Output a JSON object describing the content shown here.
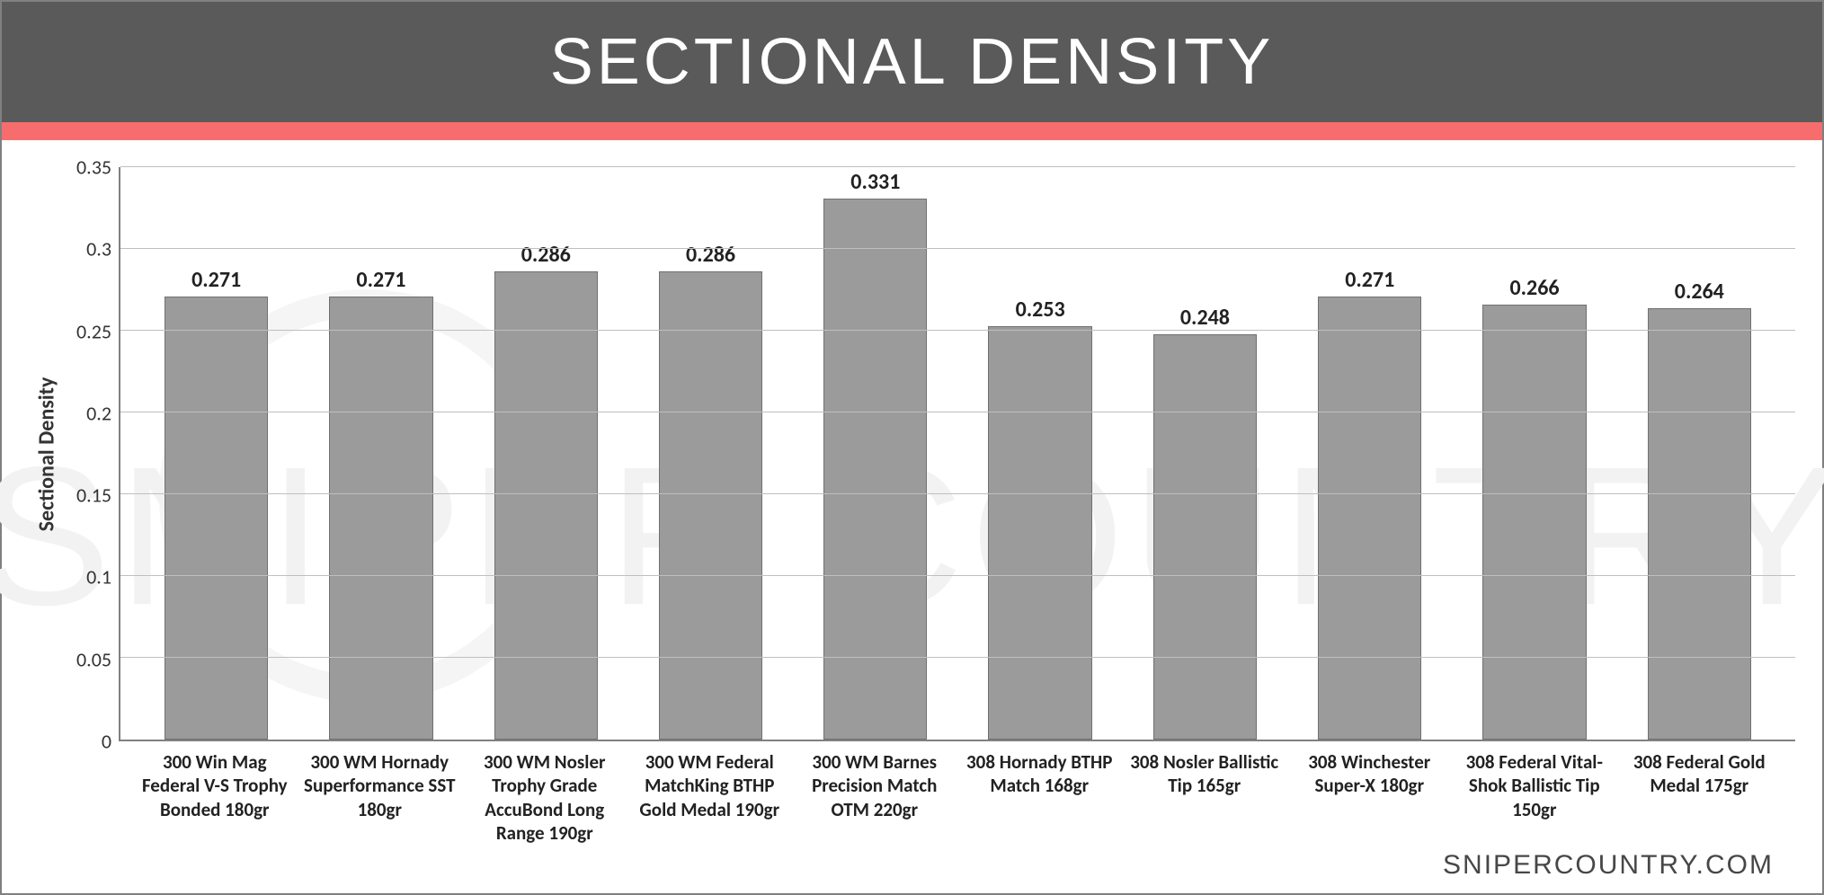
{
  "title": "SECTIONAL DENSITY",
  "accent_color": "#f76d6d",
  "title_band_color": "#5a5a5a",
  "title_text_color": "#ffffff",
  "chart": {
    "type": "bar",
    "y_axis_label": "Sectional Density",
    "ylim": [
      0,
      0.35
    ],
    "ytick_step": 0.05,
    "yticks": [
      "0",
      "0.05",
      "0.1",
      "0.15",
      "0.2",
      "0.25",
      "0.3",
      "0.35"
    ],
    "grid_color": "#bfbfbf",
    "axis_color": "#808080",
    "background_color": "#ffffff",
    "bar_color": "#9b9b9b",
    "bar_border_color": "#707070",
    "value_fontsize": 24,
    "label_fontsize": 21,
    "axis_label_fontsize": 24,
    "categories": [
      "300 Win Mag Federal V-S Trophy Bonded 180gr",
      "300 WM Hornady Superformance SST 180gr",
      "300 WM Nosler Trophy Grade AccuBond Long Range 190gr",
      "300 WM Federal MatchKing BTHP Gold Medal 190gr",
      "300 WM Barnes Precision Match OTM 220gr",
      "308 Hornady BTHP Match 168gr",
      "308 Nosler Ballistic Tip 165gr",
      "308 Winchester Super-X 180gr",
      "308 Federal Vital-Shok Ballistic Tip 150gr",
      "308 Federal Gold Medal 175gr"
    ],
    "values": [
      0.271,
      0.271,
      0.286,
      0.286,
      0.331,
      0.253,
      0.248,
      0.271,
      0.266,
      0.264
    ]
  },
  "watermark_text": "SNIPER COUNTRY",
  "footer": "SNIPERCOUNTRY.COM"
}
